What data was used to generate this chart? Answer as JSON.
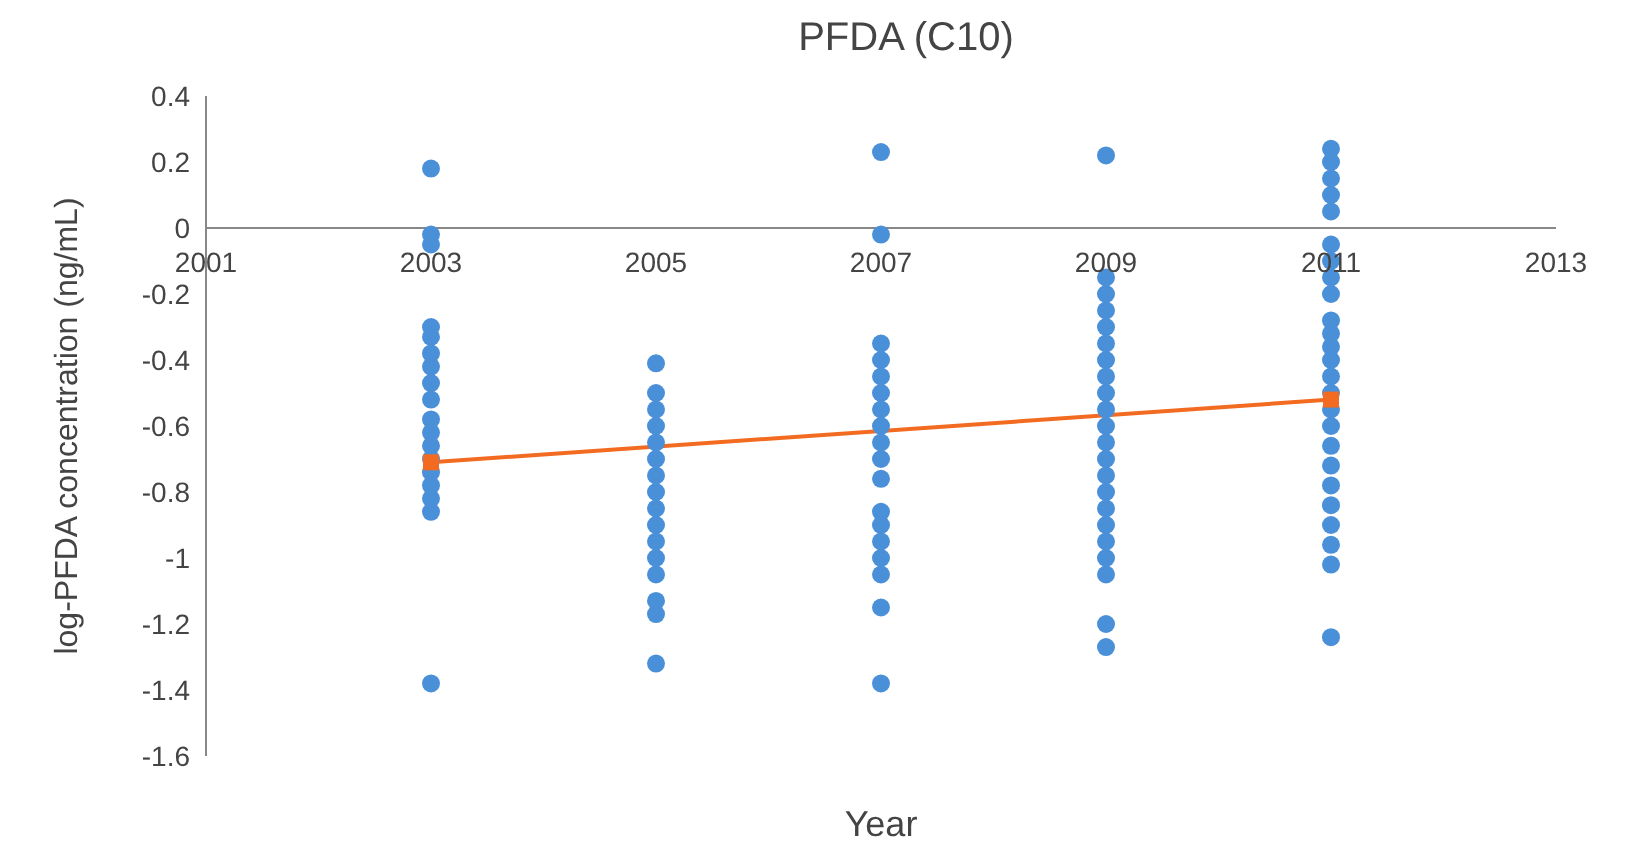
{
  "chart_data": {
    "type": "scatter",
    "title": "PFDA (C10)",
    "xlabel": "Year",
    "ylabel": "log-PFDA concentration (ng/mL)",
    "xlim": [
      2001,
      2013
    ],
    "xticks": [
      2001,
      2003,
      2005,
      2007,
      2009,
      2011,
      2013
    ],
    "ylim": [
      -1.6,
      0.4
    ],
    "yticks": [
      -1.6,
      -1.4,
      -1.2,
      -1,
      -0.8,
      -0.6,
      -0.4,
      -0.2,
      0,
      0.2,
      0.4
    ],
    "grid": false,
    "legend": false,
    "series": [
      {
        "color": "#4a90d9",
        "marker": "circle",
        "x": [
          2003,
          2003,
          2003,
          2003,
          2003,
          2003,
          2003,
          2003,
          2003,
          2003,
          2003,
          2003,
          2003,
          2003,
          2003,
          2003,
          2003,
          2003,
          2005,
          2005,
          2005,
          2005,
          2005,
          2005,
          2005,
          2005,
          2005,
          2005,
          2005,
          2005,
          2005,
          2005,
          2005,
          2005,
          2007,
          2007,
          2007,
          2007,
          2007,
          2007,
          2007,
          2007,
          2007,
          2007,
          2007,
          2007,
          2007,
          2007,
          2007,
          2007,
          2007,
          2007,
          2009,
          2009,
          2009,
          2009,
          2009,
          2009,
          2009,
          2009,
          2009,
          2009,
          2009,
          2009,
          2009,
          2009,
          2009,
          2009,
          2009,
          2009,
          2009,
          2009,
          2009,
          2009,
          2011,
          2011,
          2011,
          2011,
          2011,
          2011,
          2011,
          2011,
          2011,
          2011,
          2011,
          2011,
          2011,
          2011,
          2011,
          2011,
          2011,
          2011,
          2011,
          2011,
          2011,
          2011,
          2011,
          2011,
          2011
        ],
        "values": [
          0.18,
          -0.02,
          -0.05,
          -0.3,
          -0.33,
          -0.38,
          -0.42,
          -0.47,
          -0.52,
          -0.58,
          -0.62,
          -0.66,
          -0.7,
          -0.74,
          -0.78,
          -0.82,
          -0.86,
          -1.38,
          -0.41,
          -0.5,
          -0.55,
          -0.6,
          -0.65,
          -0.7,
          -0.75,
          -0.8,
          -0.85,
          -0.9,
          -0.95,
          -1,
          -1.05,
          -1.13,
          -1.17,
          -1.32,
          0.23,
          -0.02,
          -0.35,
          -0.4,
          -0.45,
          -0.5,
          -0.55,
          -0.6,
          -0.65,
          -0.7,
          -0.76,
          -0.86,
          -0.9,
          -0.95,
          -1,
          -1.05,
          -1.15,
          -1.38,
          0.22,
          -0.15,
          -0.2,
          -0.25,
          -0.3,
          -0.35,
          -0.4,
          -0.45,
          -0.5,
          -0.55,
          -0.6,
          -0.65,
          -0.7,
          -0.75,
          -0.8,
          -0.85,
          -0.9,
          -0.95,
          -1,
          -1.05,
          -1.2,
          -1.27,
          0.24,
          0.2,
          0.15,
          0.1,
          0.05,
          -0.05,
          -0.1,
          -0.15,
          -0.2,
          -0.28,
          -0.32,
          -0.36,
          -0.4,
          -0.45,
          -0.5,
          -0.55,
          -0.6,
          -0.66,
          -0.72,
          -0.78,
          -0.84,
          -0.9,
          -0.96,
          -1.02,
          -1.24
        ]
      },
      {
        "type": "line",
        "color": "#f26b21",
        "marker": "square",
        "x": [
          2003,
          2011
        ],
        "values": [
          -0.71,
          -0.52
        ]
      }
    ]
  }
}
